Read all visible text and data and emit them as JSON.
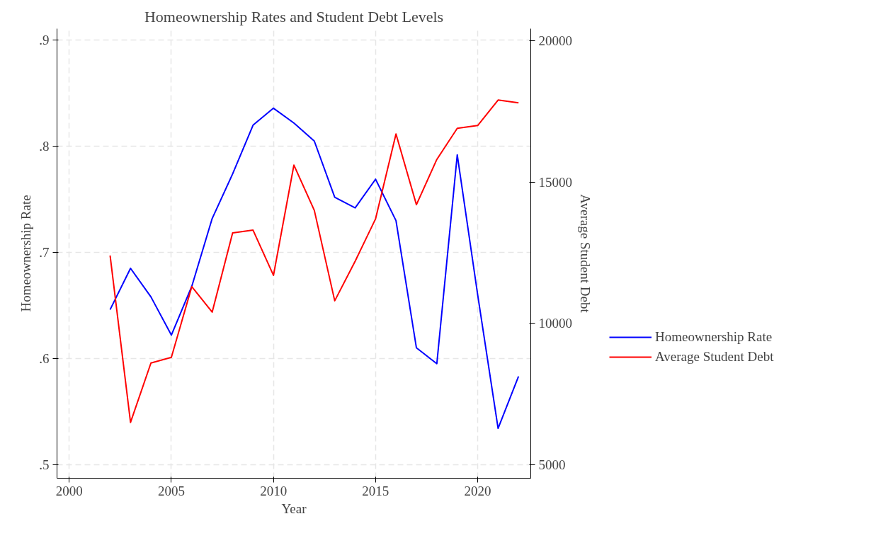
{
  "chart_data": {
    "type": "line",
    "title": "Homeownership Rates and Student Debt Levels",
    "xlabel": "Year",
    "ylabel": "Homeownership Rate",
    "y2label": "Average Student Debt",
    "x": [
      2002,
      2003,
      2004,
      2005,
      2006,
      2007,
      2008,
      2009,
      2010,
      2011,
      2012,
      2013,
      2014,
      2015,
      2016,
      2017,
      2018,
      2019,
      2020,
      2021,
      2022
    ],
    "series": [
      {
        "name": "Homeownership Rate",
        "color": "#0000ff",
        "values": [
          0.646,
          0.685,
          0.658,
          0.622,
          0.668,
          0.732,
          0.774,
          0.82,
          0.836,
          0.822,
          0.805,
          0.752,
          0.742,
          0.769,
          0.73,
          0.61,
          0.595,
          0.792,
          0.66,
          0.534,
          0.583
        ]
      },
      {
        "name": "Average Student Debt",
        "color": "#ff0000",
        "axis": "y2",
        "values": [
          12400,
          6500,
          8600,
          8800,
          11300,
          10400,
          13200,
          13300,
          11700,
          15600,
          14000,
          10800,
          12200,
          13700,
          16700,
          14200,
          15800,
          16900,
          17000,
          17900,
          17800
        ]
      }
    ],
    "xlim": [
      1999.4,
      2022.6
    ],
    "xticks": [
      2000,
      2005,
      2010,
      2015,
      2020
    ],
    "ylim": [
      0.487,
      0.911
    ],
    "yticks": [
      {
        "value": 0.5,
        "label": ".5"
      },
      {
        "value": 0.6,
        "label": ".6"
      },
      {
        "value": 0.7,
        "label": ".7"
      },
      {
        "value": 0.8,
        "label": ".8"
      },
      {
        "value": 0.9,
        "label": ".9"
      }
    ],
    "y2lim": [
      4525,
      20425
    ],
    "y2ticks": [
      5000,
      10000,
      15000,
      20000
    ],
    "grid": true,
    "legend": "right",
    "line_style": "solid"
  }
}
